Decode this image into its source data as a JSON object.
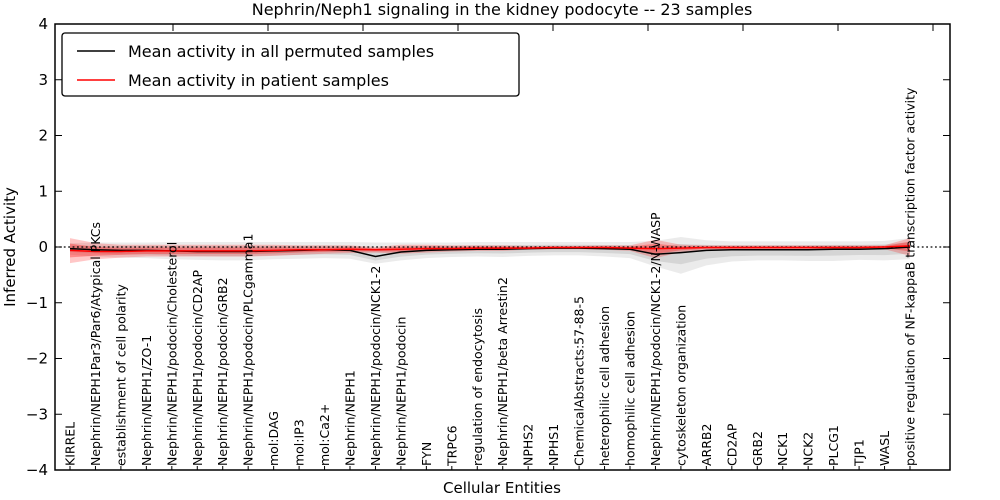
{
  "figure": {
    "title": "Nephrin/Neph1 signaling in the kidney podocyte -- 23 samples",
    "xlabel": "Cellular Entities",
    "ylabel": "Inferred Activity"
  },
  "legend": {
    "entries": [
      {
        "label": "Mean activity in all permuted samples",
        "color": "#000000"
      },
      {
        "label": "Mean activity in patient samples",
        "color": "#ff0000"
      }
    ]
  },
  "chart_data": {
    "type": "line",
    "title": "Nephrin/Neph1 signaling in the kidney podocyte -- 23 samples",
    "xlabel": "Cellular Entities",
    "ylabel": "Inferred Activity",
    "ylim": [
      -4,
      4
    ],
    "yticks": [
      4,
      3,
      2,
      1,
      0,
      -1,
      -2,
      -3,
      -4
    ],
    "grid": false,
    "legend_position": "upper left",
    "zero_line_style": "dotted",
    "x_tick_label_rotation": 90,
    "band_inner_fraction": 0.55,
    "categories": [
      "KIRREL",
      "Nephrin/NEPH1Par3/Par6/Atypical PKCs",
      "establishment of cell polarity",
      "Nephrin/NEPH1/ZO-1",
      "Nephrin/NEPH1/podocin/Cholesterol",
      "Nephrin/NEPH1/podocin/CD2AP",
      "Nephrin/NEPH1/podocin/GRB2",
      "Nephrin/NEPH1/podocin/PLCgamma1",
      "mol:DAG",
      "mol:IP3",
      "mol:Ca2+",
      "Nephrin/NEPH1",
      "Nephrin/NEPH1/podocin/NCK1-2",
      "Nephrin/NEPH1/podocin",
      "FYN",
      "TRPC6",
      "regulation of endocytosis",
      "Nephrin/NEPH1/beta Arrestin2",
      "NPHS2",
      "NPHS1",
      "ChemicalAbstracts:57-88-5",
      "heterophilic cell adhesion",
      "homophilic cell adhesion",
      "Nephrin/NEPH1/podocin/NCK1-2/N-WASP",
      "cytoskeleton organization",
      "ARRB2",
      "CD2AP",
      "GRB2",
      "NCK1",
      "NCK2",
      "PLCG1",
      "TJP1",
      "WASL",
      "positive regulation of NF-kappaB transcription factor activity"
    ],
    "series": [
      {
        "name": "Mean activity in all permuted samples",
        "color": "#000000",
        "band_color": "#000000",
        "band_opacity_outer": 0.08,
        "band_opacity_inner": 0.09,
        "values": [
          -0.03,
          -0.05,
          -0.06,
          -0.06,
          -0.07,
          -0.08,
          -0.08,
          -0.08,
          -0.07,
          -0.06,
          -0.05,
          -0.06,
          -0.17,
          -0.09,
          -0.06,
          -0.05,
          -0.04,
          -0.04,
          -0.03,
          -0.02,
          -0.02,
          -0.03,
          -0.04,
          -0.13,
          -0.1,
          -0.06,
          -0.05,
          -0.05,
          -0.05,
          -0.05,
          -0.04,
          -0.04,
          -0.03,
          0.0
        ],
        "band_upper": [
          0.07,
          0.08,
          0.08,
          0.08,
          0.09,
          0.09,
          0.09,
          0.09,
          0.09,
          0.09,
          0.09,
          0.09,
          0.08,
          0.08,
          0.08,
          0.08,
          0.09,
          0.09,
          0.09,
          0.09,
          0.09,
          0.09,
          0.09,
          0.11,
          0.18,
          0.12,
          0.1,
          0.1,
          0.1,
          0.1,
          0.1,
          0.1,
          0.11,
          0.16
        ],
        "band_lower": [
          -0.14,
          -0.17,
          -0.19,
          -0.2,
          -0.22,
          -0.23,
          -0.24,
          -0.24,
          -0.22,
          -0.21,
          -0.2,
          -0.21,
          -0.3,
          -0.24,
          -0.2,
          -0.18,
          -0.17,
          -0.18,
          -0.16,
          -0.15,
          -0.15,
          -0.17,
          -0.2,
          -0.35,
          -0.48,
          -0.33,
          -0.26,
          -0.24,
          -0.24,
          -0.25,
          -0.25,
          -0.23,
          -0.24,
          -0.22
        ]
      },
      {
        "name": "Mean activity in patient samples",
        "color": "#ff0000",
        "band_color": "#ff0000",
        "band_opacity_outer": 0.22,
        "band_opacity_inner": 0.3,
        "values": [
          -0.06,
          -0.08,
          -0.08,
          -0.07,
          -0.07,
          -0.07,
          -0.07,
          -0.07,
          -0.06,
          -0.05,
          -0.05,
          -0.04,
          -0.05,
          -0.04,
          -0.03,
          -0.03,
          -0.02,
          -0.02,
          -0.02,
          -0.01,
          -0.01,
          -0.01,
          -0.02,
          -0.03,
          -0.02,
          -0.01,
          -0.01,
          -0.01,
          -0.01,
          -0.01,
          -0.01,
          -0.01,
          0.0,
          0.02
        ],
        "band_upper": [
          0.16,
          0.07,
          0.04,
          0.04,
          0.04,
          0.04,
          0.04,
          0.04,
          0.04,
          0.03,
          0.03,
          0.03,
          0.0,
          0.04,
          0.04,
          0.03,
          0.03,
          0.03,
          0.02,
          0.02,
          0.02,
          0.03,
          0.03,
          0.13,
          0.04,
          0.03,
          0.03,
          0.03,
          0.03,
          0.03,
          0.03,
          0.03,
          0.03,
          0.16
        ],
        "band_lower": [
          -0.29,
          -0.22,
          -0.19,
          -0.17,
          -0.17,
          -0.17,
          -0.17,
          -0.17,
          -0.16,
          -0.14,
          -0.12,
          -0.11,
          -0.1,
          -0.12,
          -0.1,
          -0.08,
          -0.07,
          -0.07,
          -0.05,
          -0.04,
          -0.04,
          -0.05,
          -0.07,
          -0.2,
          -0.09,
          -0.05,
          -0.05,
          -0.05,
          -0.05,
          -0.05,
          -0.05,
          -0.05,
          -0.04,
          -0.16
        ]
      }
    ]
  }
}
